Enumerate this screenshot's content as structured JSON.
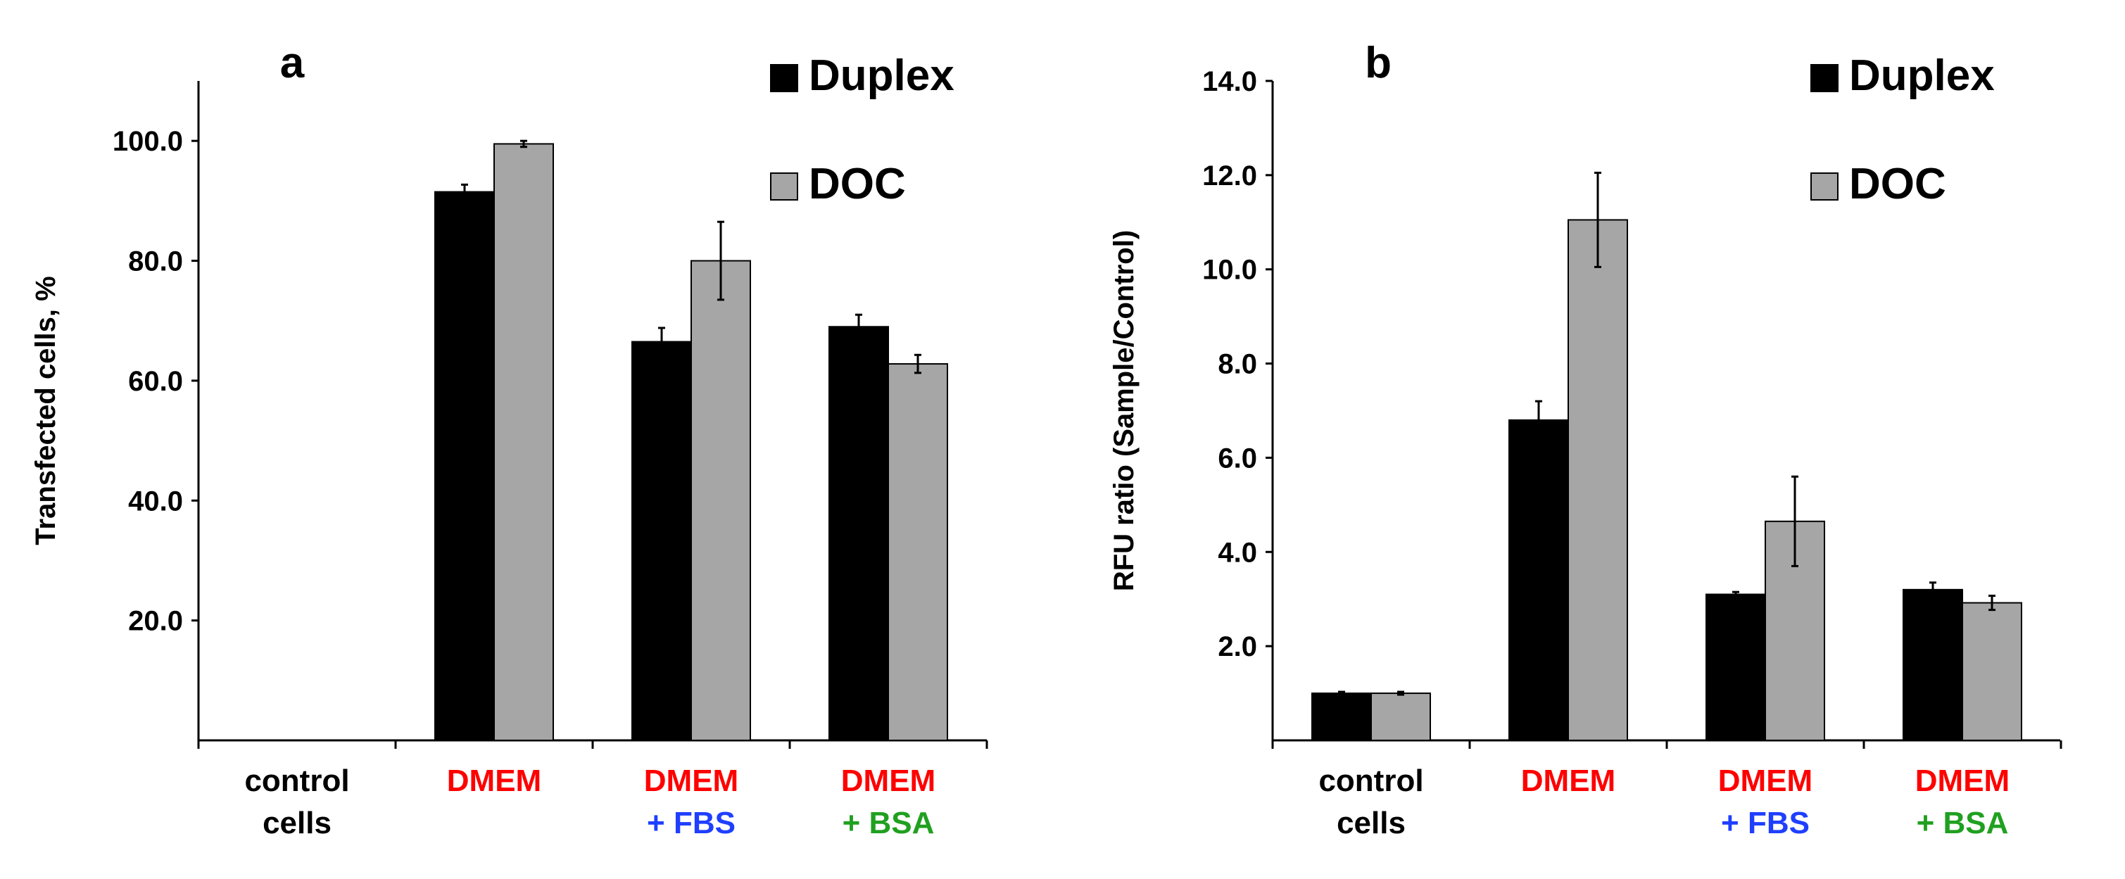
{
  "colors": {
    "duplex": "#000000",
    "doc": "#a6a6a6",
    "axis": "#000000",
    "label_black": "#000000",
    "label_red": "#ff0000",
    "label_blue": "#1f3fff",
    "label_green": "#20a020"
  },
  "categories": [
    {
      "lines": [
        {
          "text": "control",
          "color": "black"
        },
        {
          "text": "cells",
          "color": "black"
        }
      ]
    },
    {
      "lines": [
        {
          "text": "DMEM",
          "color": "red"
        }
      ]
    },
    {
      "lines": [
        {
          "text": "DMEM",
          "color": "red"
        },
        {
          "text": "+ FBS",
          "color": "blue"
        }
      ]
    },
    {
      "lines": [
        {
          "text": "DMEM",
          "color": "red"
        },
        {
          "text": "+ BSA",
          "color": "green"
        }
      ]
    }
  ],
  "chart_data": [
    {
      "type": "bar",
      "panel_label": "a",
      "title": "",
      "xlabel": "",
      "ylabel": "Transfected cells, %",
      "ylim": [
        0,
        110
      ],
      "yticks": [
        20,
        40,
        60,
        80,
        100
      ],
      "ytick_labels": [
        "20.0",
        "40.0",
        "60.0",
        "80.0",
        "100.0"
      ],
      "grid": false,
      "legend": "top-right",
      "categories": [
        "control cells",
        "DMEM",
        "DMEM + FBS",
        "DMEM + BSA"
      ],
      "series": [
        {
          "name": "Duplex",
          "values": [
            null,
            91.5,
            66.5,
            69.0
          ],
          "errors": [
            null,
            1.2,
            2.3,
            2.0
          ]
        },
        {
          "name": "DOC",
          "values": [
            null,
            99.5,
            80.0,
            62.8
          ],
          "errors": [
            null,
            0.5,
            6.5,
            1.5
          ]
        }
      ]
    },
    {
      "type": "bar",
      "panel_label": "b",
      "title": "",
      "xlabel": "",
      "ylabel": "RFU ratio (Sample/Control)",
      "ylim": [
        0,
        14
      ],
      "yticks": [
        2,
        4,
        6,
        8,
        10,
        12,
        14
      ],
      "ytick_labels": [
        "2.0",
        "4.0",
        "6.0",
        "8.0",
        "10.0",
        "12.0",
        "14.0"
      ],
      "grid": false,
      "legend": "top-right",
      "categories": [
        "control cells",
        "DMEM",
        "DMEM + FBS",
        "DMEM + BSA"
      ],
      "series": [
        {
          "name": "Duplex",
          "values": [
            1.0,
            6.8,
            3.1,
            3.2
          ],
          "errors": [
            0.03,
            0.4,
            0.05,
            0.15
          ]
        },
        {
          "name": "DOC",
          "values": [
            1.0,
            11.05,
            4.65,
            2.92
          ],
          "errors": [
            0.03,
            1.0,
            0.95,
            0.15
          ]
        }
      ]
    }
  ]
}
